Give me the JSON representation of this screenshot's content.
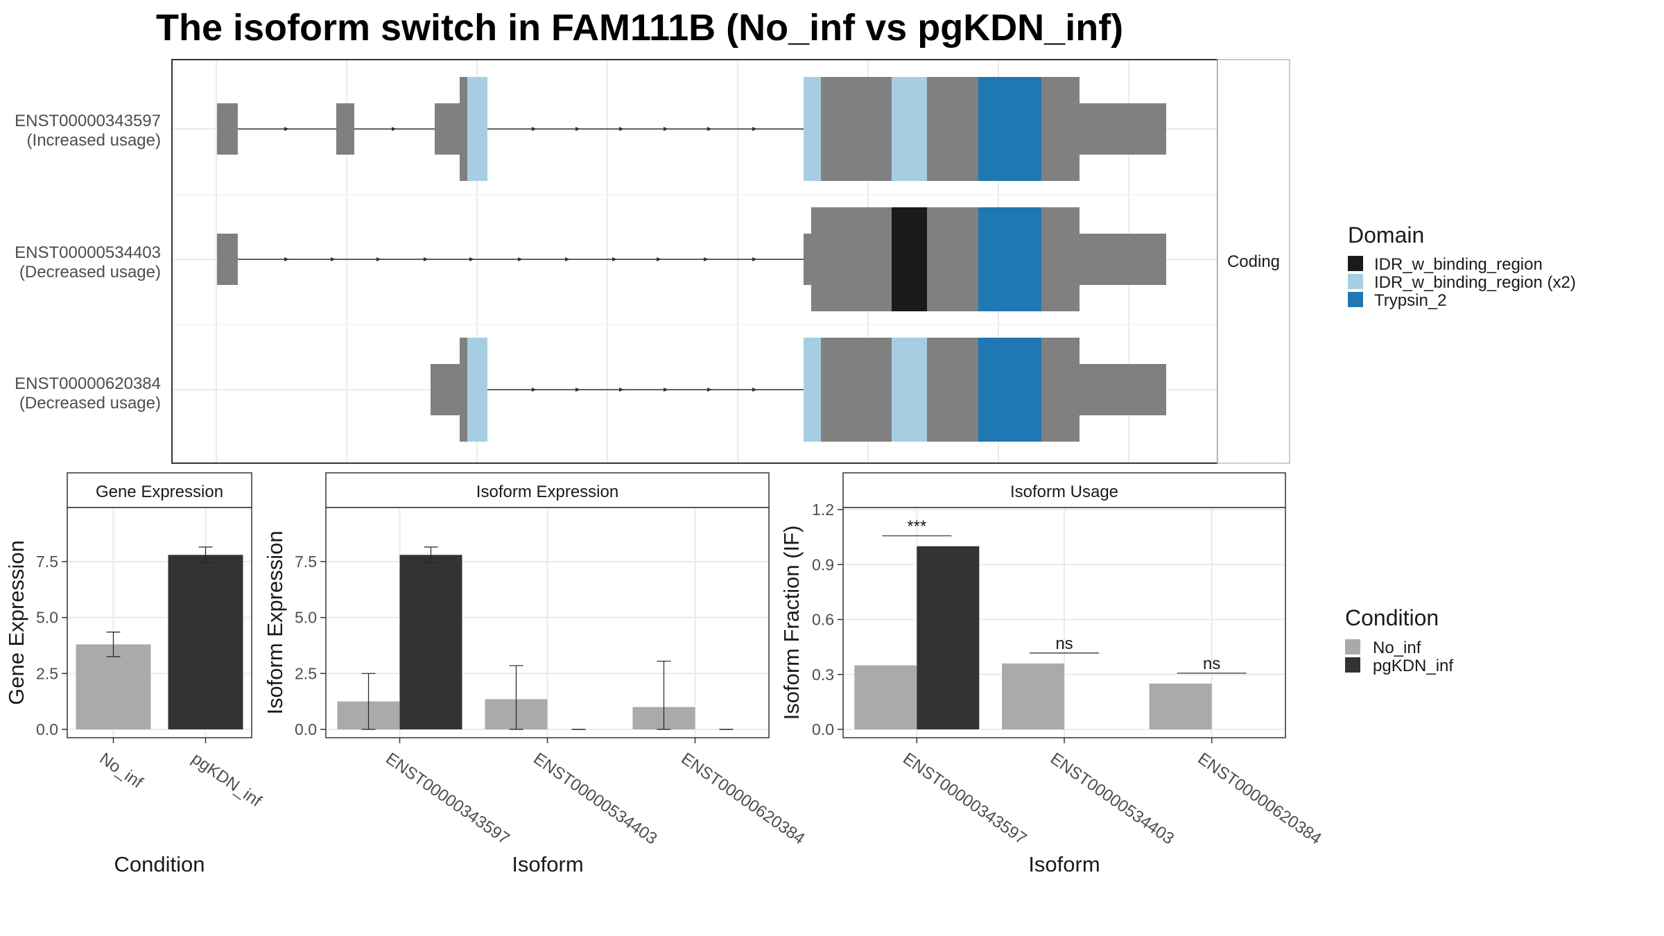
{
  "title": "The isoform switch in FAM111B (No_inf vs pgKDN_inf)",
  "structure": {
    "strip_label": "Coding",
    "isoforms": [
      {
        "id": "ENST00000343597",
        "usage": "(Increased usage)"
      },
      {
        "id": "ENST00000534403",
        "usage": "(Decreased usage)"
      },
      {
        "id": "ENST00000620384",
        "usage": "(Decreased usage)"
      }
    ]
  },
  "legends": {
    "domain": {
      "title": "Domain",
      "items": [
        {
          "label": "IDR_w_binding_region",
          "color": "#1a1a1a"
        },
        {
          "label": "IDR_w_binding_region (x2)",
          "color": "#a6cee3"
        },
        {
          "label": "Trypsin_2",
          "color": "#1f78b4"
        }
      ]
    },
    "condition": {
      "title": "Condition",
      "items": [
        {
          "label": "No_inf",
          "color": "#aaaaaa"
        },
        {
          "label": "pgKDN_inf",
          "color": "#333333"
        }
      ]
    }
  },
  "colors": {
    "utr": "#808080",
    "no_inf": "#aaaaaa",
    "pgkdn_inf": "#333333"
  },
  "chart_data": [
    {
      "type": "bar",
      "title": "Gene Expression",
      "xlabel": "Condition",
      "ylabel": "Gene Expression",
      "ylim": [
        0,
        10
      ],
      "yticks": [
        "0.0",
        "2.5",
        "5.0",
        "7.5"
      ],
      "categories": [
        "No_inf",
        "pgKDN_inf"
      ],
      "values": [
        3.8,
        7.8
      ],
      "errors": [
        [
          3.25,
          4.35
        ],
        [
          7.45,
          8.15
        ]
      ]
    },
    {
      "type": "bar",
      "title": "Isoform Expression",
      "xlabel": "Isoform",
      "ylabel": "Isoform Expression",
      "ylim": [
        0,
        10
      ],
      "yticks": [
        "0.0",
        "2.5",
        "5.0",
        "7.5"
      ],
      "categories": [
        "ENST00000343597",
        "ENST00000534403",
        "ENST00000620384"
      ],
      "series": [
        {
          "name": "No_inf",
          "values": [
            1.25,
            1.35,
            1.0
          ],
          "errors": [
            [
              0.0,
              2.5
            ],
            [
              0.0,
              2.85
            ],
            [
              0.0,
              3.05
            ]
          ]
        },
        {
          "name": "pgKDN_inf",
          "values": [
            7.8,
            0.0,
            0.0
          ],
          "errors": [
            [
              7.45,
              8.15
            ],
            [
              0.0,
              0.0
            ],
            [
              0.0,
              0.0
            ]
          ]
        }
      ]
    },
    {
      "type": "bar",
      "title": "Isoform Usage",
      "xlabel": "Isoform",
      "ylabel": "Isoform Fraction (IF)",
      "ylim": [
        0,
        1.2
      ],
      "yticks": [
        "0.0",
        "0.3",
        "0.6",
        "0.9",
        "1.2"
      ],
      "categories": [
        "ENST00000343597",
        "ENST00000534403",
        "ENST00000620384"
      ],
      "series": [
        {
          "name": "No_inf",
          "values": [
            0.35,
            0.36,
            0.25
          ]
        },
        {
          "name": "pgKDN_inf",
          "values": [
            1.0,
            0.0,
            0.0
          ]
        }
      ],
      "significance": [
        "***",
        "ns",
        "ns"
      ]
    }
  ]
}
